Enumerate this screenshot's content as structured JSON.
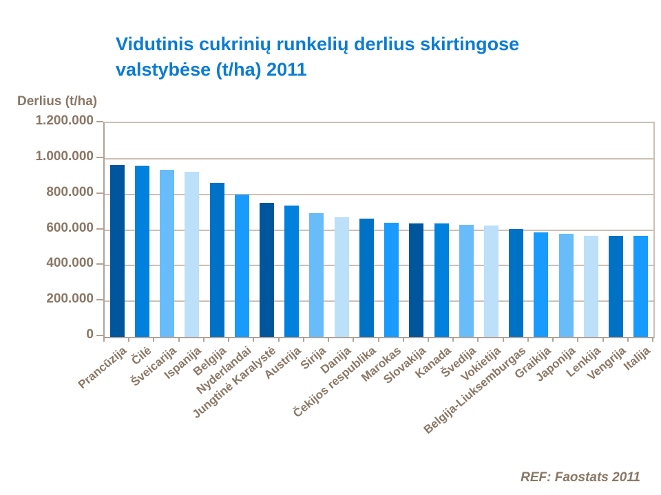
{
  "title": {
    "line1": "Vidutinis cukrinių runkelių derlius skirtingose",
    "line2": "valstybėse (t/ha) 2011"
  },
  "y_axis_title": "Derlius (t/ha)",
  "footer": {
    "ref": "REF: Faostats 2011"
  },
  "colors": {
    "title": "#0b7bd3",
    "text_brown": "#8a7765",
    "axis": "#b2a294",
    "grid": "#ccc0b5",
    "bar_dark_navy": "#00569d",
    "bar_medium_blue": "#0081dd",
    "bar_light_sky": "#69bcfa",
    "bar_pale_blue": "#bcdffa",
    "bar_medium_dark": "#0072c6",
    "bar_bright_blue": "#189bfc"
  },
  "chart_data": {
    "type": "bar",
    "title": "Vidutinis cukrinių runkelių derlius skirtingose valstybėse (t/ha) 2011",
    "xlabel": "",
    "ylabel": "Derlius (t/ha)",
    "ylim": [
      0,
      1200000
    ],
    "ytick_step": 200000,
    "ytick_labels": [
      "0",
      "200.000",
      "400.000",
      "600.000",
      "800.000",
      "1.000.000",
      "1.200.000"
    ],
    "grid": true,
    "legend": false,
    "categories": [
      "Prancūzija",
      "Čilė",
      "Šveicarija",
      "Ispanija",
      "Belgija",
      "Nyderlandai",
      "Jungtinė Karalystė",
      "Austrija",
      "Sirija",
      "Danija",
      "Čekijos respublika",
      "Marokas",
      "Slovakija",
      "Kanada",
      "Švedija",
      "Vokietija",
      "Belgija-Liuksemburgas",
      "Graikija",
      "Japonija",
      "Lenkija",
      "Vengrija",
      "Italija"
    ],
    "values": [
      965000,
      961000,
      938000,
      926000,
      865000,
      797000,
      751000,
      736000,
      693000,
      671000,
      664000,
      642000,
      638000,
      638000,
      628000,
      624000,
      607000,
      586000,
      580000,
      568000,
      566000,
      567000
    ],
    "bar_colors": [
      "#00569d",
      "#0081dd",
      "#69bcfa",
      "#bcdffa",
      "#0072c6",
      "#189bfc",
      "#00569d",
      "#0081dd",
      "#69bcfa",
      "#bcdffa",
      "#0072c6",
      "#189bfc",
      "#00569d",
      "#0081dd",
      "#69bcfa",
      "#bcdffa",
      "#0072c6",
      "#189bfc",
      "#69bcfa",
      "#bcdffa",
      "#0072c6",
      "#189bfc"
    ]
  }
}
